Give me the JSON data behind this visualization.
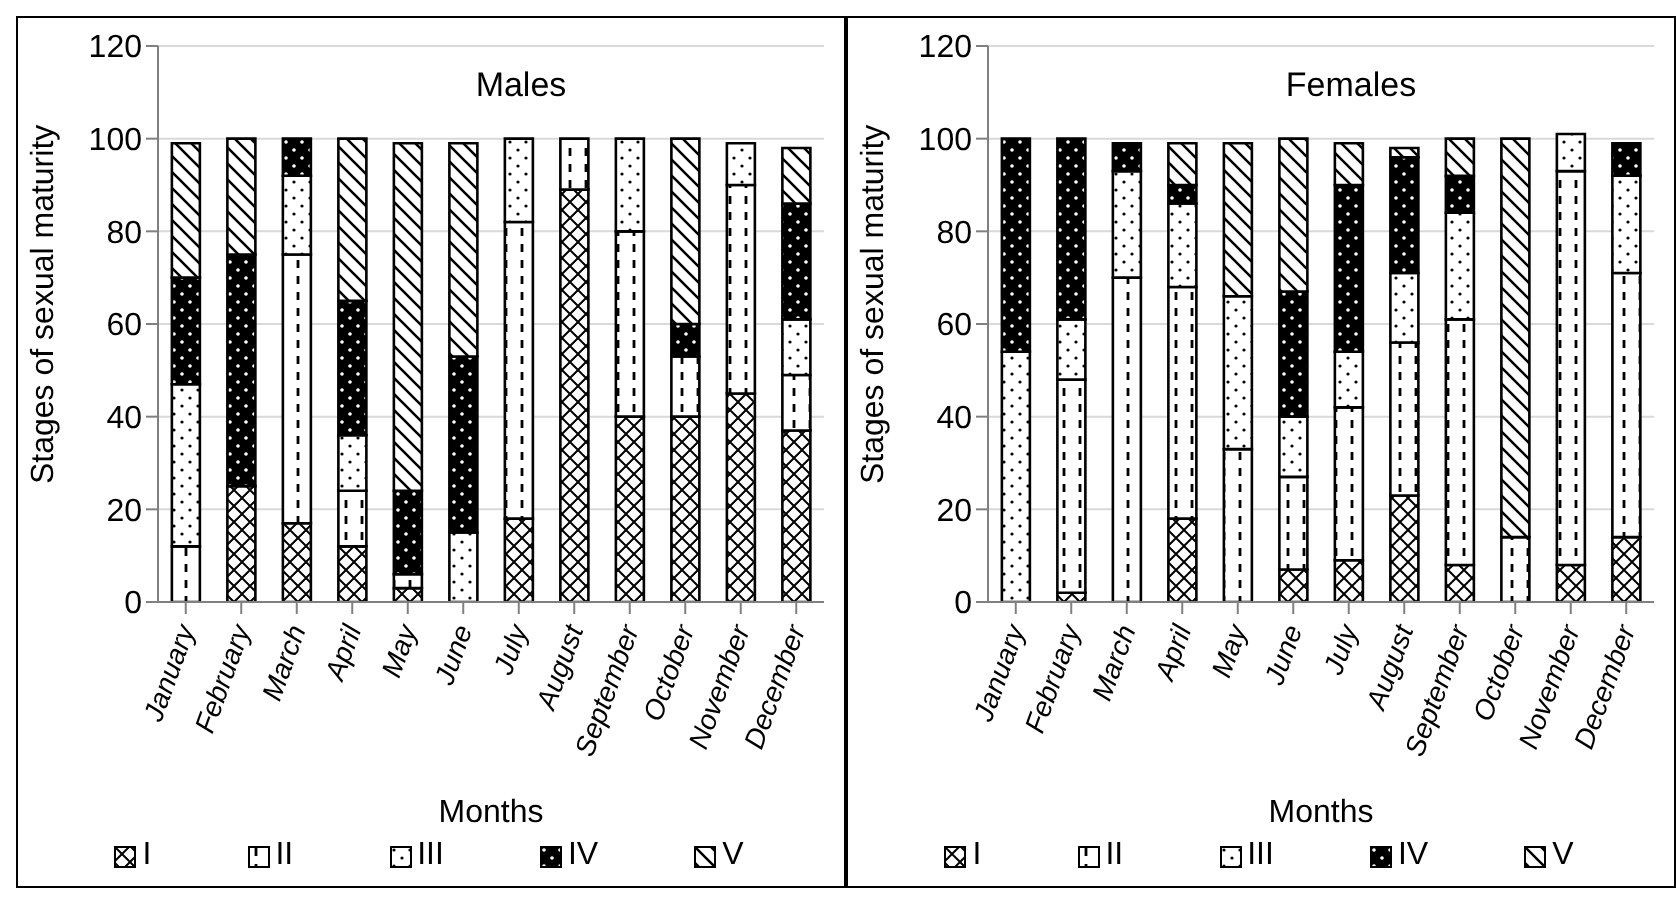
{
  "chart_data": [
    {
      "type": "bar",
      "title": "Males",
      "xlabel": "Months",
      "ylabel": "Stages of sexual maturity",
      "stacked": true,
      "categories": [
        "January",
        "February",
        "March",
        "April",
        "May",
        "June",
        "July",
        "August",
        "September",
        "October",
        "November",
        "December"
      ],
      "ylim": [
        0,
        120
      ],
      "yticks": [
        0,
        20,
        40,
        60,
        80,
        100,
        120
      ],
      "grid": "y",
      "legend": "bottom",
      "series": [
        {
          "name": "I",
          "color": "#000000",
          "values": [
            0,
            25,
            17,
            12,
            3,
            0,
            18,
            89,
            40,
            40,
            45,
            37
          ]
        },
        {
          "name": "II",
          "color": "#000000",
          "values": [
            12,
            0,
            58,
            12,
            3,
            0,
            64,
            11,
            40,
            13,
            45,
            12
          ]
        },
        {
          "name": "III",
          "color": "#000000",
          "values": [
            35,
            0,
            17,
            12,
            0,
            15,
            18,
            0,
            20,
            0,
            9,
            12
          ]
        },
        {
          "name": "IV",
          "color": "#000000",
          "values": [
            23,
            50,
            8,
            29,
            18,
            38,
            0,
            0,
            0,
            7,
            0,
            25
          ]
        },
        {
          "name": "V",
          "color": "#000000",
          "values": [
            29,
            25,
            0,
            35,
            75,
            46,
            0,
            0,
            0,
            40,
            0,
            12
          ]
        }
      ]
    },
    {
      "type": "bar",
      "title": "Females",
      "xlabel": "Months",
      "ylabel": "Stages of sexual maturity",
      "stacked": true,
      "categories": [
        "January",
        "February",
        "March",
        "April",
        "May",
        "June",
        "July",
        "August",
        "September",
        "October",
        "November",
        "December"
      ],
      "ylim": [
        0,
        120
      ],
      "yticks": [
        0,
        20,
        40,
        60,
        80,
        100,
        120
      ],
      "grid": "y",
      "legend": "bottom",
      "series": [
        {
          "name": "I",
          "color": "#000000",
          "values": [
            0,
            2,
            0,
            18,
            0,
            7,
            9,
            23,
            8,
            0,
            8,
            14
          ]
        },
        {
          "name": "II",
          "color": "#000000",
          "values": [
            0,
            46,
            70,
            50,
            33,
            20,
            33,
            33,
            53,
            14,
            85,
            57
          ]
        },
        {
          "name": "III",
          "color": "#000000",
          "values": [
            54,
            13,
            23,
            18,
            33,
            13,
            12,
            15,
            23,
            0,
            8,
            21
          ]
        },
        {
          "name": "IV",
          "color": "#000000",
          "values": [
            46,
            39,
            6,
            4,
            0,
            27,
            36,
            25,
            8,
            0,
            0,
            7
          ]
        },
        {
          "name": "V",
          "color": "#000000",
          "values": [
            0,
            0,
            0,
            9,
            33,
            33,
            9,
            2,
            8,
            86,
            0,
            0
          ]
        }
      ]
    }
  ]
}
